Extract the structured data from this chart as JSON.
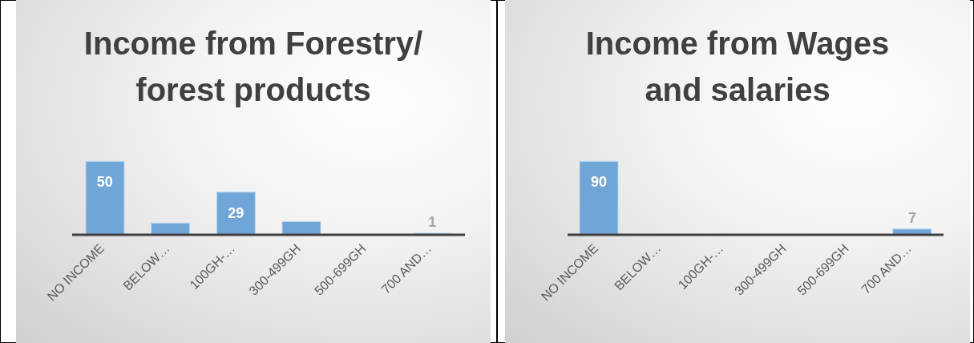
{
  "chart_data": [
    {
      "type": "bar",
      "title": "Income from Forestry/ forest products",
      "categories": [
        "NO INCOME",
        "BELOW…",
        "100GH-…",
        "300-499GH",
        "500-699GH",
        "700 AND…"
      ],
      "values": [
        50,
        8,
        29,
        9,
        0,
        1
      ],
      "value_labels": [
        "50",
        null,
        "29",
        null,
        null,
        "1"
      ],
      "color": "#70a5d8",
      "tick_labels": "x"
    },
    {
      "type": "bar",
      "title": "Income from Wages and salaries",
      "categories": [
        "NO INCOME",
        "BELOW…",
        "100GH-…",
        "300-499GH",
        "500-699GH",
        "700 AND…"
      ],
      "values": [
        90,
        0,
        0,
        0,
        0,
        7
      ],
      "value_labels": [
        "90",
        null,
        null,
        null,
        null,
        "7"
      ],
      "color": "#70a5d8",
      "tick_labels": "x"
    }
  ]
}
